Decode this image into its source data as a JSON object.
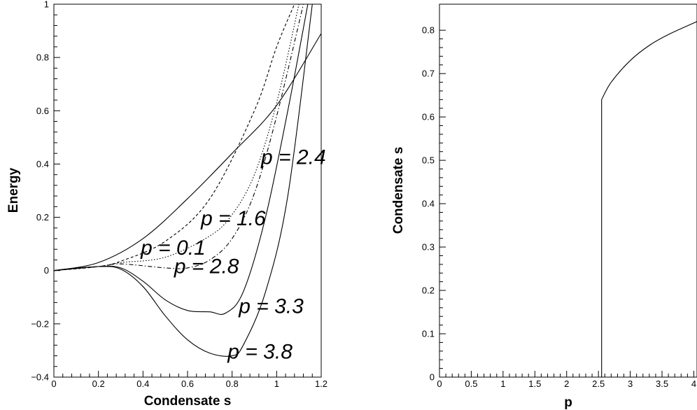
{
  "chart_data": [
    {
      "type": "line",
      "title": "",
      "xlabel": "Condensate s",
      "ylabel": "Energy",
      "xlim": [
        0,
        1.2
      ],
      "ylim": [
        -0.4,
        1
      ],
      "xticks": [
        0,
        0.2,
        0.4,
        0.6,
        0.8,
        1,
        1.2
      ],
      "xtick_labels": [
        "0",
        "0.2",
        "0.4",
        "0.6",
        "0.8",
        "1",
        "1.2"
      ],
      "yticks": [
        -0.4,
        -0.2,
        0,
        0.2,
        0.4,
        0.6,
        0.8,
        1
      ],
      "ytick_labels": [
        "−0.4",
        "−0.2",
        "0",
        "0.2",
        "0.4",
        "0.6",
        "0.8",
        "1"
      ],
      "grid": false,
      "legend": "none",
      "series": [
        {
          "name": "",
          "style": "solid",
          "x": [
            0,
            0.2,
            0.4,
            0.6,
            0.8,
            1.0,
            1.2
          ],
          "y": [
            0,
            0.03,
            0.12,
            0.27,
            0.44,
            0.62,
            0.89
          ]
        },
        {
          "name": "",
          "style": "dashed",
          "x": [
            0,
            0.2,
            0.3,
            0.5,
            0.7,
            0.9,
            1.0,
            1.08
          ],
          "y": [
            0,
            0.015,
            0.035,
            0.11,
            0.27,
            0.6,
            0.84,
            1.0
          ]
        },
        {
          "name": "",
          "style": "dotted",
          "x": [
            0,
            0.2,
            0.3,
            0.5,
            0.7,
            0.8,
            0.9,
            1.0,
            1.1
          ],
          "y": [
            0,
            0.015,
            0.03,
            0.05,
            0.13,
            0.21,
            0.36,
            0.63,
            1.0
          ]
        },
        {
          "name": "",
          "style": "dashdot",
          "x": [
            0,
            0.2,
            0.3,
            0.5,
            0.6,
            0.7,
            0.8,
            0.9,
            1.0,
            1.12
          ],
          "y": [
            0,
            0.015,
            0.025,
            0.01,
            0.01,
            0.04,
            0.12,
            0.29,
            0.58,
            1.0
          ]
        },
        {
          "name": "",
          "style": "solid",
          "x": [
            0,
            0.2,
            0.3,
            0.4,
            0.5,
            0.6,
            0.7,
            0.77,
            0.85,
            0.95,
            1.05,
            1.14
          ],
          "y": [
            0,
            0.015,
            0.01,
            -0.04,
            -0.11,
            -0.15,
            -0.155,
            -0.16,
            -0.08,
            0.2,
            0.6,
            1.0
          ]
        },
        {
          "name": "",
          "style": "solid",
          "x": [
            0,
            0.2,
            0.3,
            0.4,
            0.5,
            0.6,
            0.7,
            0.8,
            0.85,
            0.95,
            1.05,
            1.16
          ],
          "y": [
            0,
            0.015,
            0.005,
            -0.06,
            -0.17,
            -0.26,
            -0.31,
            -0.32,
            -0.28,
            -0.08,
            0.28,
            1.0
          ]
        }
      ],
      "annotations": [
        {
          "text": "p = 2.4",
          "x": 0.93,
          "y": 0.4
        },
        {
          "text": "p = 1.6",
          "x": 0.66,
          "y": 0.17
        },
        {
          "text": "p = 0.1",
          "x": 0.39,
          "y": 0.06
        },
        {
          "text": "p = 2.8",
          "x": 0.54,
          "y": -0.01
        },
        {
          "text": "p = 3.3",
          "x": 0.83,
          "y": -0.16
        },
        {
          "text": "p = 3.8",
          "x": 0.78,
          "y": -0.33
        }
      ]
    },
    {
      "type": "line",
      "title": "",
      "xlabel": "p",
      "ylabel": "Condensate s",
      "xlim": [
        0,
        4.05
      ],
      "ylim": [
        0,
        0.86
      ],
      "xticks": [
        0,
        0.5,
        1,
        1.5,
        2,
        2.5,
        3,
        3.5,
        4
      ],
      "xtick_labels": [
        "0",
        "0.5",
        "1",
        "1.5",
        "2",
        "2.5",
        "3",
        "3.5",
        "4"
      ],
      "yticks": [
        0,
        0.1,
        0.2,
        0.3,
        0.4,
        0.5,
        0.6,
        0.7,
        0.8
      ],
      "ytick_labels": [
        "0",
        "0.1",
        "0.2",
        "0.3",
        "0.4",
        "0.5",
        "0.6",
        "0.7",
        "0.8"
      ],
      "grid": false,
      "legend": "none",
      "series": [
        {
          "name": "",
          "style": "solid",
          "x": [
            0,
            2.55,
            2.55,
            2.7,
            3.0,
            3.3,
            3.6,
            4.05
          ],
          "y": [
            0,
            0,
            0.64,
            0.68,
            0.73,
            0.765,
            0.79,
            0.82
          ]
        }
      ]
    }
  ]
}
